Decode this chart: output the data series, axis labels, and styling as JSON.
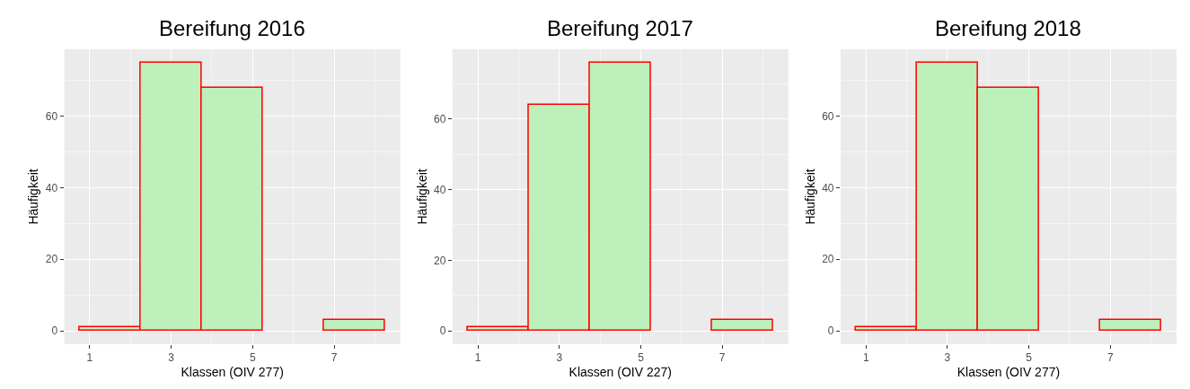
{
  "chart_data": [
    {
      "type": "histogram",
      "title": "Bereifung 2016",
      "xlabel": "Klassen (OIV 277)",
      "ylabel": "Häufigkeit",
      "bins": [
        0.75,
        2.25,
        3.75,
        5.25,
        6.75,
        8.25
      ],
      "values": [
        1,
        75,
        68,
        0,
        3
      ],
      "color": "#bdf0bb",
      "xlim": [
        0.375,
        8.625
      ],
      "ylim": [
        -3.75,
        78.75
      ],
      "xticks": [
        1,
        3,
        5,
        7
      ],
      "yticks": [
        0,
        20,
        40,
        60
      ],
      "grid": true
    },
    {
      "type": "histogram",
      "title": "Bereifung 2017",
      "xlabel": "Klassen (OIV 227)",
      "ylabel": "Häufigkeit",
      "bins": [
        0.75,
        2.25,
        3.75,
        5.25,
        6.75,
        8.25
      ],
      "values": [
        1,
        64,
        76,
        0,
        3
      ],
      "color": "#bdf0bb",
      "xlim": [
        0.375,
        8.625
      ],
      "ylim": [
        -3.8,
        79.8
      ],
      "xticks": [
        1,
        3,
        5,
        7
      ],
      "yticks": [
        0,
        20,
        40,
        60
      ],
      "grid": true
    },
    {
      "type": "histogram",
      "title": "Bereifung 2018",
      "xlabel": "Klassen (OIV 277)",
      "ylabel": "Häufigkeit",
      "bins": [
        0.75,
        2.25,
        3.75,
        5.25,
        6.75,
        8.25
      ],
      "values": [
        1,
        75,
        68,
        0,
        3
      ],
      "color": "#bdf0bb",
      "xlim": [
        0.375,
        8.625
      ],
      "ylim": [
        -3.75,
        78.75
      ],
      "xticks": [
        1,
        3,
        5,
        7
      ],
      "yticks": [
        0,
        20,
        40,
        60
      ],
      "grid": true
    }
  ]
}
